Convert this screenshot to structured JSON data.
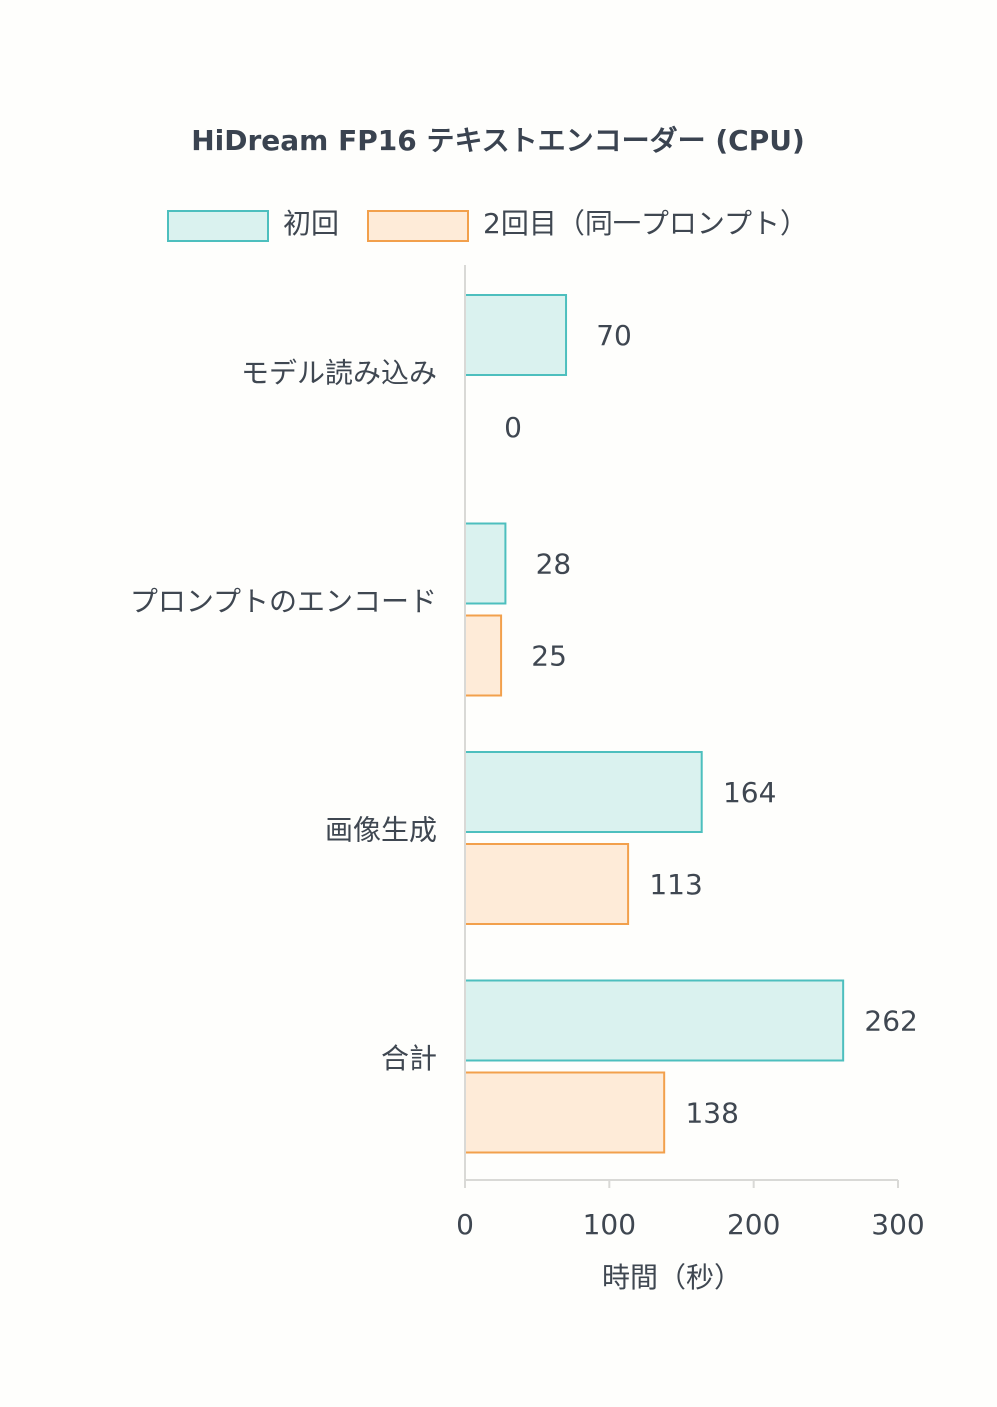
{
  "chart_data": {
    "type": "bar",
    "orientation": "horizontal",
    "title": "HiDream FP16 テキストエンコーダー (CPU)",
    "xlabel": "時間（秒）",
    "ylabel": "",
    "xlim": [
      0,
      300
    ],
    "xticks": [
      0,
      100,
      200,
      300
    ],
    "grid": false,
    "legend_position": "top",
    "categories": [
      "モデル読み込み",
      "プロンプトのエンコード",
      "画像生成",
      "合計"
    ],
    "series": [
      {
        "name": "初回",
        "values": [
          70,
          28,
          164,
          262
        ],
        "fill": "#daf2ef",
        "stroke": "#4dbfbe"
      },
      {
        "name": "2回目（同一プロンプト）",
        "values": [
          0,
          25,
          113,
          138
        ],
        "fill": "#feebd8",
        "stroke": "#f2a04c"
      }
    ]
  }
}
